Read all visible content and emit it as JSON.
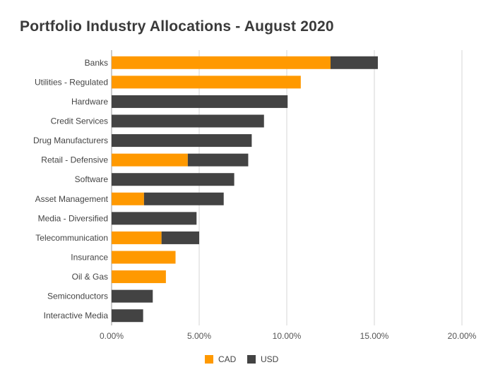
{
  "chart_data": {
    "type": "bar",
    "orientation": "horizontal",
    "stacked": true,
    "title": "Portfolio Industry Allocations - August 2020",
    "categories": [
      "Banks",
      "Utilities - Regulated",
      "Hardware",
      "Credit Services",
      "Drug Manufacturers",
      "Retail - Defensive",
      "Software",
      "Asset Management",
      "Media - Diversified",
      "Telecommunication",
      "Insurance",
      "Oil & Gas",
      "Semiconductors",
      "Interactive Media"
    ],
    "series": [
      {
        "name": "CAD",
        "color": "#ff9900",
        "values": [
          12.5,
          10.8,
          0,
          0,
          0,
          4.35,
          0,
          1.85,
          0,
          2.85,
          3.65,
          3.1,
          0,
          0
        ]
      },
      {
        "name": "USD",
        "color": "#434343",
        "values": [
          2.7,
          0,
          10.05,
          8.7,
          8.0,
          3.45,
          7.0,
          4.55,
          4.85,
          2.15,
          0,
          0,
          2.35,
          1.8
        ]
      }
    ],
    "xlim": [
      0,
      20
    ],
    "x_ticks": [
      "0.00%",
      "5.00%",
      "10.00%",
      "15.00%",
      "20.00%"
    ],
    "x_tick_values": [
      0,
      5,
      10,
      15,
      20
    ],
    "grid": "vertical",
    "legend": "bottom"
  }
}
